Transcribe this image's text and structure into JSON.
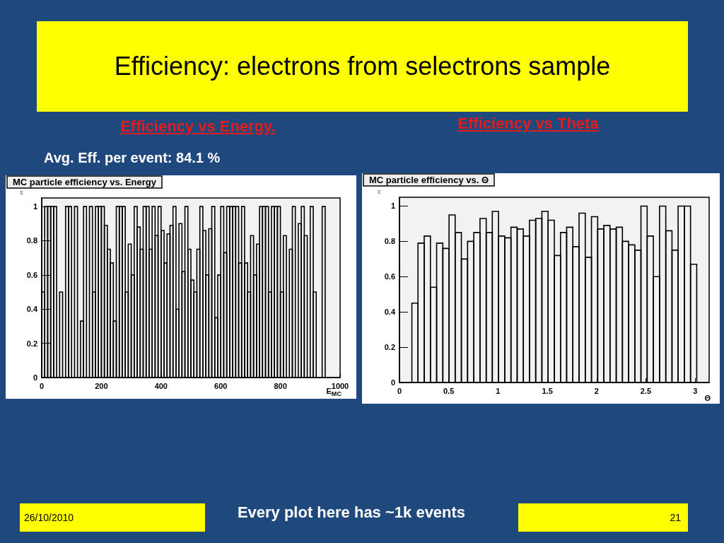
{
  "chart_data": [
    {
      "type": "histogram",
      "title": "MC particle efficiency vs. Energy",
      "xlabel": "E$_{MC}$",
      "ylabel": "ε",
      "color": "#000000",
      "bins": [
        0,
        10,
        20,
        30,
        40,
        50,
        60,
        70,
        80,
        90,
        100,
        110,
        120,
        130,
        140,
        150,
        160,
        170,
        180,
        190,
        200,
        210,
        220,
        230,
        240,
        250,
        260,
        270,
        280,
        290,
        300,
        310,
        320,
        330,
        340,
        350,
        360,
        370,
        380,
        390,
        400,
        410,
        420,
        430,
        440,
        450,
        460,
        470,
        480,
        490,
        500,
        510,
        520,
        530,
        540,
        550,
        560,
        570,
        580,
        590,
        600,
        610,
        620,
        630,
        640,
        650,
        660,
        670,
        680,
        690,
        700,
        710,
        720,
        730,
        740,
        750,
        760,
        770,
        780,
        790,
        800,
        810,
        820,
        830,
        840,
        850,
        860,
        870,
        880,
        890,
        900,
        910,
        920,
        930,
        940,
        950,
        960,
        970,
        980,
        990,
        1000
      ],
      "values": [
        0.5,
        1,
        1,
        1,
        1,
        0,
        0.5,
        0,
        1,
        1,
        0,
        1,
        0,
        0.33,
        1,
        0,
        1,
        0.5,
        1,
        1,
        1,
        0.89,
        0.75,
        0.67,
        0.33,
        1,
        1,
        1,
        0.5,
        0.78,
        0.6,
        1,
        0.88,
        0.75,
        1,
        1,
        0.75,
        1,
        0.83,
        1,
        0.86,
        0.67,
        0.84,
        0.89,
        1,
        0.4,
        0.9,
        0.62,
        1,
        0.75,
        0.57,
        0.5,
        0.75,
        1,
        0.86,
        0.6,
        0.87,
        1,
        0.35,
        0.6,
        1,
        0.73,
        1,
        1,
        1,
        1,
        0.67,
        1,
        0.67,
        0.5,
        0.83,
        0.6,
        0.78,
        1,
        1,
        1,
        0.5,
        1,
        1,
        1,
        0.5,
        0.83,
        0,
        0.75,
        1,
        0,
        0.9,
        1,
        0.83,
        0,
        1,
        0.5,
        0,
        0,
        1,
        0,
        0,
        0,
        0,
        0
      ],
      "xlim": [
        0,
        1000
      ],
      "xticks": [
        0,
        200,
        400,
        600,
        800,
        1000
      ],
      "ylim": [
        0,
        1.05
      ],
      "yticks": [
        0,
        0.2,
        0.4,
        0.6,
        0.8,
        1
      ],
      "grid": false,
      "annotations": [
        "Efficiency: electrons from selectrons sample",
        "Efficiency vs Energy.",
        "Avg.  Eff.  per event:  84.1 %",
        "26/10/2010",
        "Every plot here has ~1k events",
        "21"
      ]
    },
    {
      "type": "histogram",
      "title": "MC particle efficiency vs. Θ",
      "xlabel": "Θ",
      "ylabel": "ε",
      "color": "#000000",
      "bins": [
        0,
        0.063,
        0.126,
        0.188,
        0.251,
        0.314,
        0.377,
        0.44,
        0.503,
        0.565,
        0.628,
        0.691,
        0.754,
        0.817,
        0.88,
        0.942,
        1.005,
        1.068,
        1.131,
        1.194,
        1.257,
        1.319,
        1.382,
        1.445,
        1.508,
        1.571,
        1.634,
        1.696,
        1.759,
        1.822,
        1.885,
        1.948,
        2.011,
        2.073,
        2.136,
        2.199,
        2.262,
        2.325,
        2.388,
        2.45,
        2.513,
        2.576,
        2.639,
        2.702,
        2.765,
        2.827,
        2.89,
        2.953,
        3.016,
        3.079,
        3.142
      ],
      "values": [
        0,
        0,
        0.45,
        0.79,
        0.83,
        0.54,
        0.79,
        0.76,
        0.95,
        0.85,
        0.7,
        0.8,
        0.85,
        0.93,
        0.85,
        0.97,
        0.83,
        0.82,
        0.88,
        0.87,
        0.83,
        0.92,
        0.93,
        0.97,
        0.92,
        0.72,
        0.85,
        0.88,
        0.77,
        0.96,
        0.71,
        0.94,
        0.87,
        0.89,
        0.87,
        0.88,
        0.8,
        0.78,
        0.75,
        1,
        0.83,
        0.6,
        1,
        0.86,
        0.75,
        1,
        1,
        0.67,
        0,
        0
      ],
      "xlim": [
        0,
        3.142
      ],
      "xticks": [
        0,
        0.5,
        1,
        1.5,
        2,
        2.5,
        3
      ],
      "ylim": [
        0,
        1.05
      ],
      "yticks": [
        0,
        0.2,
        0.4,
        0.6,
        0.8,
        1
      ],
      "grid": false,
      "annotations": [
        "Efficiency vs Theta"
      ]
    }
  ]
}
